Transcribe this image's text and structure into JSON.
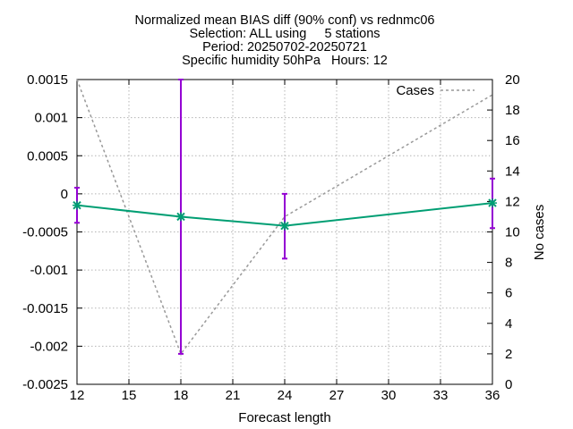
{
  "chart_data": {
    "type": "line",
    "title_lines": [
      "Normalized mean BIAS diff (90% conf) vs rednmc06",
      "Selection: ALL using     5 stations",
      "Period: 20250702-20250721",
      "Specific humidity 50hPa   Hours: 12"
    ],
    "xlabel": "Forecast length",
    "ylabel": "",
    "y2label": "No cases",
    "xlim": [
      12,
      36
    ],
    "ylim": [
      -0.0025,
      0.0015
    ],
    "y2lim": [
      0,
      20
    ],
    "x_ticks": [
      12,
      15,
      18,
      21,
      24,
      27,
      30,
      33,
      36
    ],
    "y_ticks": [
      "0.0015",
      "0.001",
      "0.0005",
      "0",
      "-0.0005",
      "-0.001",
      "-0.0015",
      "-0.002",
      "-0.0025"
    ],
    "y_tick_values": [
      0.0015,
      0.001,
      0.0005,
      0,
      -0.0005,
      -0.001,
      -0.0015,
      -0.002,
      -0.0025
    ],
    "y2_ticks": [
      20,
      18,
      16,
      14,
      12,
      10,
      8,
      6,
      4,
      2,
      0
    ],
    "grid": true,
    "legend_position": "top-right",
    "series": [
      {
        "x": [
          12,
          18,
          24,
          36
        ],
        "y": [
          -0.00015,
          -0.0003,
          -0.00042,
          -0.00012
        ],
        "err_low": [
          -0.00038,
          -0.0021,
          -0.00085,
          -0.00045
        ],
        "err_high": [
          8e-05,
          0.0015,
          0.0,
          0.0002
        ],
        "color": "#009e73",
        "err_color": "#9400d3",
        "axis": "y1"
      },
      {
        "name": "Cases",
        "x": [
          12,
          18,
          24,
          36
        ],
        "y": [
          20,
          2,
          11,
          19
        ],
        "color": "#999999",
        "dash": true,
        "axis": "y2"
      }
    ]
  }
}
